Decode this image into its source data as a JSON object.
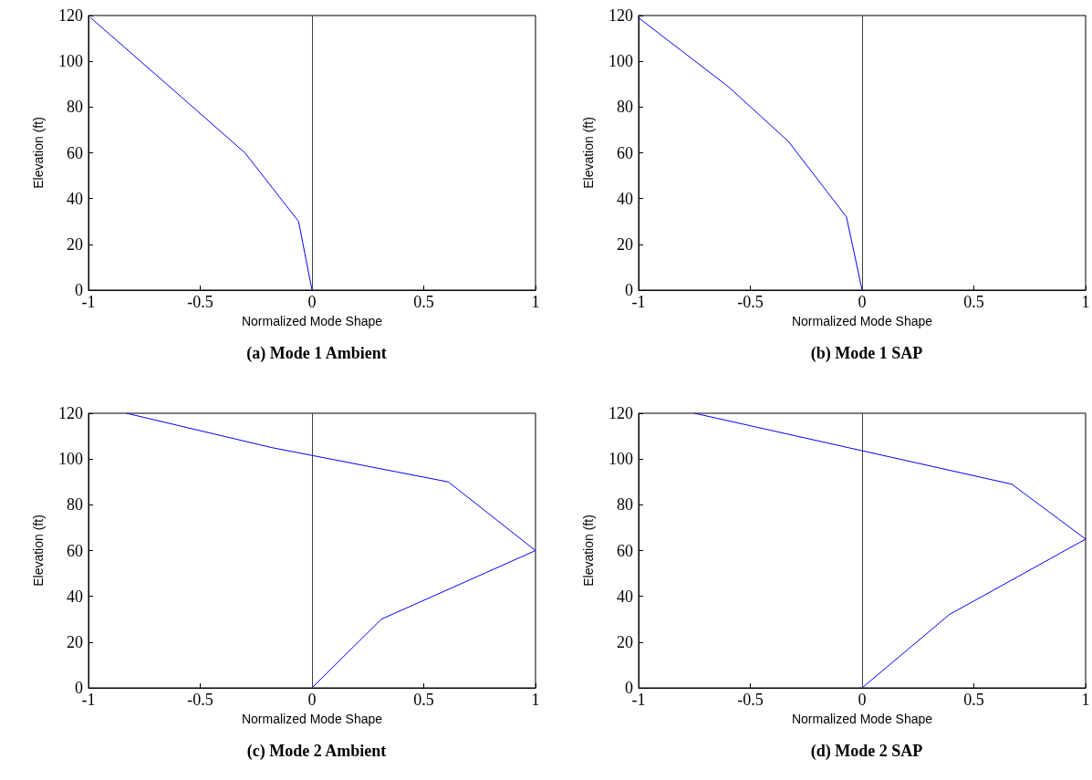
{
  "chart_data": [
    {
      "type": "line",
      "title": "(a) Mode 1 Ambient",
      "xlabel": "Normalized Mode Shape",
      "ylabel": "Elevation (ft)",
      "xlim": [
        -1,
        1
      ],
      "xticks": [
        -1,
        -0.5,
        0,
        0.5,
        1
      ],
      "ylim": [
        0,
        120
      ],
      "yticks": [
        0,
        20,
        40,
        60,
        80,
        100,
        120
      ],
      "grid": false,
      "marker": "none",
      "line_style": "solid",
      "ref_lines": [
        {
          "axis": "x",
          "value": 0,
          "color": "#404040"
        }
      ],
      "series": [
        {
          "color": "#0000ff",
          "x": [
            -0.99,
            -0.65,
            -0.3,
            -0.06,
            0
          ],
          "values": [
            119,
            90,
            60,
            30,
            0
          ]
        }
      ]
    },
    {
      "type": "line",
      "title": "(b) Mode 1 SAP",
      "xlabel": "Normalized Mode Shape",
      "ylabel": "Elevation (ft)",
      "xlim": [
        -1,
        1
      ],
      "xticks": [
        -1,
        -0.5,
        0,
        0.5,
        1
      ],
      "ylim": [
        0,
        120
      ],
      "yticks": [
        0,
        20,
        40,
        60,
        80,
        100,
        120
      ],
      "grid": false,
      "marker": "none",
      "line_style": "solid",
      "ref_lines": [
        {
          "axis": "x",
          "value": 0,
          "color": "#404040"
        }
      ],
      "series": [
        {
          "color": "#0000ff",
          "x": [
            -1,
            -0.6,
            -0.33,
            -0.07,
            0
          ],
          "values": [
            119,
            89,
            65,
            32,
            0
          ]
        }
      ]
    },
    {
      "type": "line",
      "title": "(c) Mode 2 Ambient",
      "xlabel": "Normalized Mode Shape",
      "ylabel": "Elevation (ft)",
      "xlim": [
        -1,
        1
      ],
      "xticks": [
        -1,
        -0.5,
        0,
        0.5,
        1
      ],
      "ylim": [
        0,
        120
      ],
      "yticks": [
        0,
        20,
        40,
        60,
        80,
        100,
        120
      ],
      "grid": false,
      "marker": "none",
      "line_style": "solid",
      "ref_lines": [
        {
          "axis": "x",
          "value": 0,
          "color": "#404040"
        }
      ],
      "series": [
        {
          "color": "#0000ff",
          "x": [
            -0.83,
            -0.18,
            0.61,
            1,
            0.31,
            0
          ],
          "values": [
            120,
            105,
            90,
            60,
            30,
            0
          ]
        }
      ]
    },
    {
      "type": "line",
      "title": "(d) Mode 2 SAP",
      "xlabel": "Normalized Mode Shape",
      "ylabel": "Elevation (ft)",
      "xlim": [
        -1,
        1
      ],
      "xticks": [
        -1,
        -0.5,
        0,
        0.5,
        1
      ],
      "ylim": [
        0,
        120
      ],
      "yticks": [
        0,
        20,
        40,
        60,
        80,
        100,
        120
      ],
      "grid": false,
      "marker": "none",
      "line_style": "solid",
      "ref_lines": [
        {
          "axis": "x",
          "value": 0,
          "color": "#404040"
        }
      ],
      "series": [
        {
          "color": "#0000ff",
          "x": [
            -0.75,
            0.67,
            1,
            0.39,
            0
          ],
          "values": [
            120,
            89,
            65,
            32,
            0
          ]
        }
      ]
    }
  ]
}
